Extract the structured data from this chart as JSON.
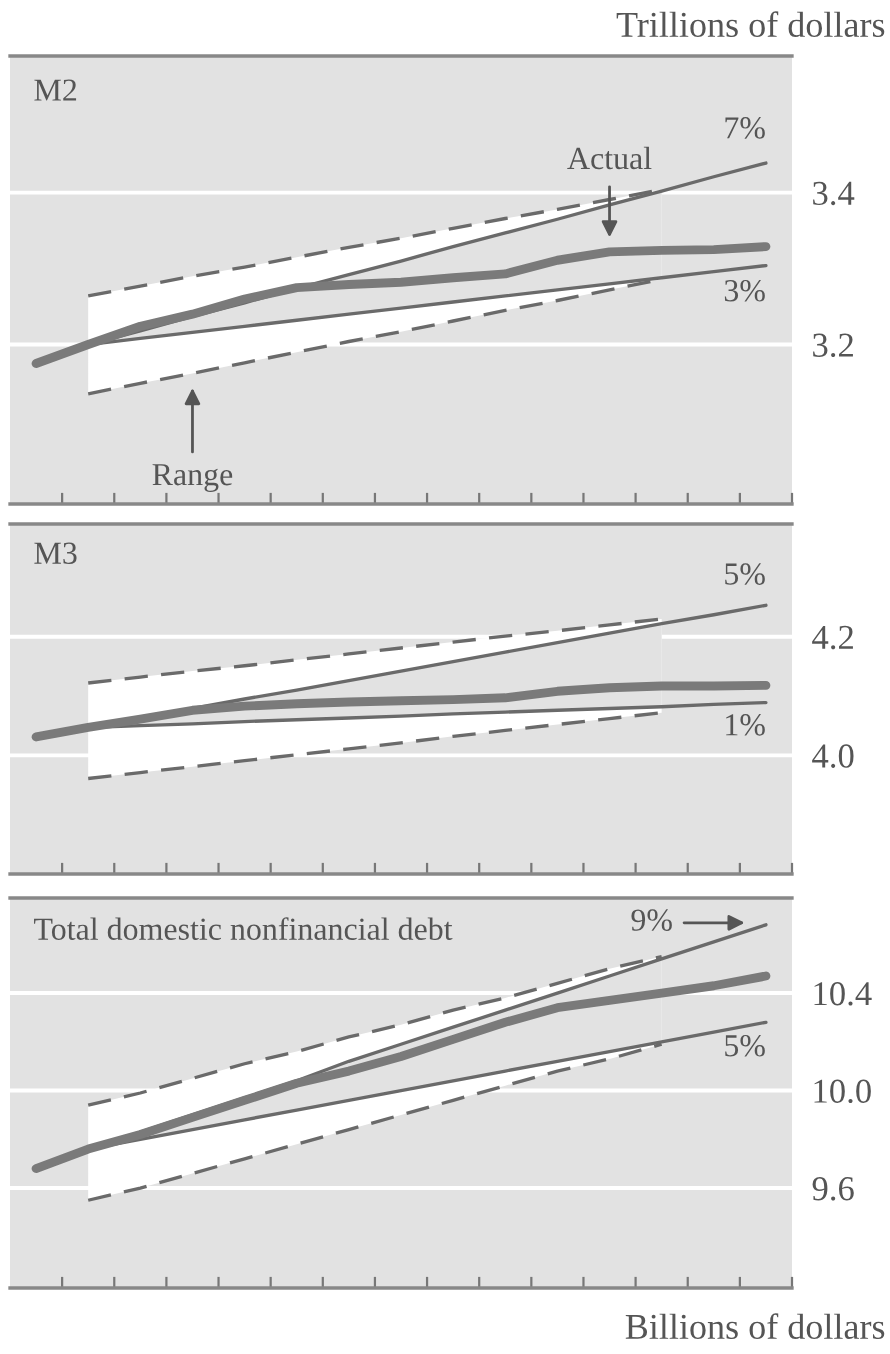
{
  "chart_data": [
    {
      "type": "line",
      "title": "M2",
      "ylabel": "Trillions of dollars",
      "annotations": [
        "Range"
      ],
      "categories": [
        null,
        null,
        null,
        null,
        null,
        null,
        null,
        null,
        null,
        null,
        null,
        null,
        null,
        null,
        null
      ],
      "ylim": [
        2.99,
        3.58
      ],
      "yticks": [
        3.2,
        3.4
      ],
      "grid": "y",
      "tick_labels": "y",
      "series": [
        {
          "color": "#6a6a6a",
          "line_style": "dashed",
          "values": [
            null,
            3.264,
            3.277,
            3.29,
            3.302,
            3.315,
            3.328,
            3.34,
            3.353,
            3.366,
            3.378,
            3.391,
            3.404,
            null,
            null
          ]
        },
        {
          "color": "#6a6a6a",
          "line_style": "dashed",
          "values": [
            null,
            3.135,
            3.149,
            3.162,
            3.176,
            3.19,
            3.204,
            3.217,
            3.231,
            3.245,
            3.258,
            3.272,
            3.286,
            null,
            null
          ]
        },
        {
          "name": "7%",
          "color": "#6a6a6a",
          "line_style": "solid",
          "values": [
            null,
            3.2,
            3.218,
            3.237,
            3.255,
            3.274,
            3.292,
            3.31,
            3.329,
            3.347,
            3.365,
            3.384,
            3.402,
            3.421,
            3.439
          ]
        },
        {
          "name": "3%",
          "color": "#6a6a6a",
          "line_style": "solid",
          "values": [
            null,
            3.2,
            3.208,
            3.216,
            3.224,
            3.232,
            3.24,
            3.248,
            3.256,
            3.264,
            3.272,
            3.28,
            3.288,
            3.296,
            3.304
          ]
        },
        {
          "name": "Actual",
          "color": "#7a7a7a",
          "line_style": "solid",
          "values": [
            3.175,
            3.2,
            3.224,
            3.24,
            3.26,
            3.275,
            3.279,
            3.282,
            3.288,
            3.293,
            3.311,
            3.322,
            3.324,
            3.325,
            3.329
          ]
        }
      ]
    },
    {
      "type": "line",
      "title": "M3",
      "categories": [
        null,
        null,
        null,
        null,
        null,
        null,
        null,
        null,
        null,
        null,
        null,
        null,
        null,
        null,
        null
      ],
      "ylim": [
        3.8,
        4.39
      ],
      "yticks": [
        {
          "value": 4.0,
          "label": "4.0"
        },
        {
          "value": 4.2,
          "label": "4.2"
        }
      ],
      "grid": "y",
      "tick_labels": "y",
      "series": [
        {
          "color": "#6a6a6a",
          "line_style": "dashed",
          "values": [
            null,
            4.122,
            4.132,
            4.142,
            4.151,
            4.161,
            4.171,
            4.181,
            4.191,
            4.201,
            4.21,
            4.22,
            4.23,
            null,
            null
          ]
        },
        {
          "color": "#6a6a6a",
          "line_style": "dashed",
          "values": [
            null,
            3.961,
            3.971,
            3.981,
            3.991,
            4.001,
            4.011,
            4.021,
            4.032,
            4.042,
            4.052,
            4.062,
            4.072,
            null,
            null
          ]
        },
        {
          "name": "5%",
          "color": "#6a6a6a",
          "line_style": "solid",
          "values": [
            null,
            4.047,
            4.063,
            4.079,
            4.095,
            4.11,
            4.126,
            4.142,
            4.158,
            4.174,
            4.19,
            4.206,
            4.222,
            4.237,
            4.253
          ]
        },
        {
          "name": "1%",
          "color": "#6a6a6a",
          "line_style": "solid",
          "values": [
            null,
            4.047,
            4.05,
            4.053,
            4.057,
            4.06,
            4.063,
            4.066,
            4.07,
            4.073,
            4.076,
            4.079,
            4.082,
            4.086,
            4.089
          ]
        },
        {
          "color": "#7a7a7a",
          "line_style": "solid",
          "values": [
            4.031,
            4.047,
            4.061,
            4.076,
            4.083,
            4.087,
            4.09,
            4.092,
            4.094,
            4.097,
            4.108,
            4.114,
            4.117,
            4.117,
            4.118
          ]
        }
      ]
    },
    {
      "type": "line",
      "title": "Total domestic nonfinancial debt",
      "annotations": [
        "Billions of dollars"
      ],
      "categories": [
        null,
        null,
        null,
        null,
        null,
        null,
        null,
        null,
        null,
        null,
        null,
        null,
        null,
        null,
        null
      ],
      "ylim": [
        9.19,
        10.79
      ],
      "yticks": [
        {
          "value": 9.6,
          "label": "9.6"
        },
        {
          "value": 10.0,
          "label": "10.0"
        },
        {
          "value": 10.4,
          "label": "10.4"
        }
      ],
      "grid": "y",
      "tick_labels": "y",
      "series": [
        {
          "color": "#6a6a6a",
          "line_style": "dashed",
          "values": [
            null,
            9.94,
            9.99,
            10.05,
            10.11,
            10.16,
            10.22,
            10.27,
            10.33,
            10.38,
            10.44,
            10.5,
            10.55,
            null,
            null
          ]
        },
        {
          "color": "#6a6a6a",
          "line_style": "dashed",
          "values": [
            null,
            9.55,
            9.6,
            9.66,
            9.72,
            9.78,
            9.84,
            9.9,
            9.96,
            10.02,
            10.08,
            10.13,
            10.19,
            null,
            null
          ]
        },
        {
          "name": "9%",
          "color": "#6a6a6a",
          "line_style": "solid",
          "values": [
            null,
            9.76,
            9.83,
            9.9,
            9.97,
            10.04,
            10.12,
            10.19,
            10.26,
            10.33,
            10.4,
            10.47,
            10.54,
            10.61,
            10.68
          ]
        },
        {
          "name": "5%",
          "color": "#6a6a6a",
          "line_style": "solid",
          "values": [
            null,
            9.76,
            9.8,
            9.84,
            9.88,
            9.92,
            9.96,
            10.0,
            10.04,
            10.08,
            10.12,
            10.16,
            10.2,
            10.24,
            10.28
          ]
        },
        {
          "color": "#7a7a7a",
          "line_style": "solid",
          "values": [
            9.68,
            9.76,
            9.82,
            9.89,
            9.96,
            10.03,
            10.08,
            10.14,
            10.21,
            10.28,
            10.34,
            10.37,
            10.4,
            10.43,
            10.47
          ]
        }
      ]
    }
  ]
}
